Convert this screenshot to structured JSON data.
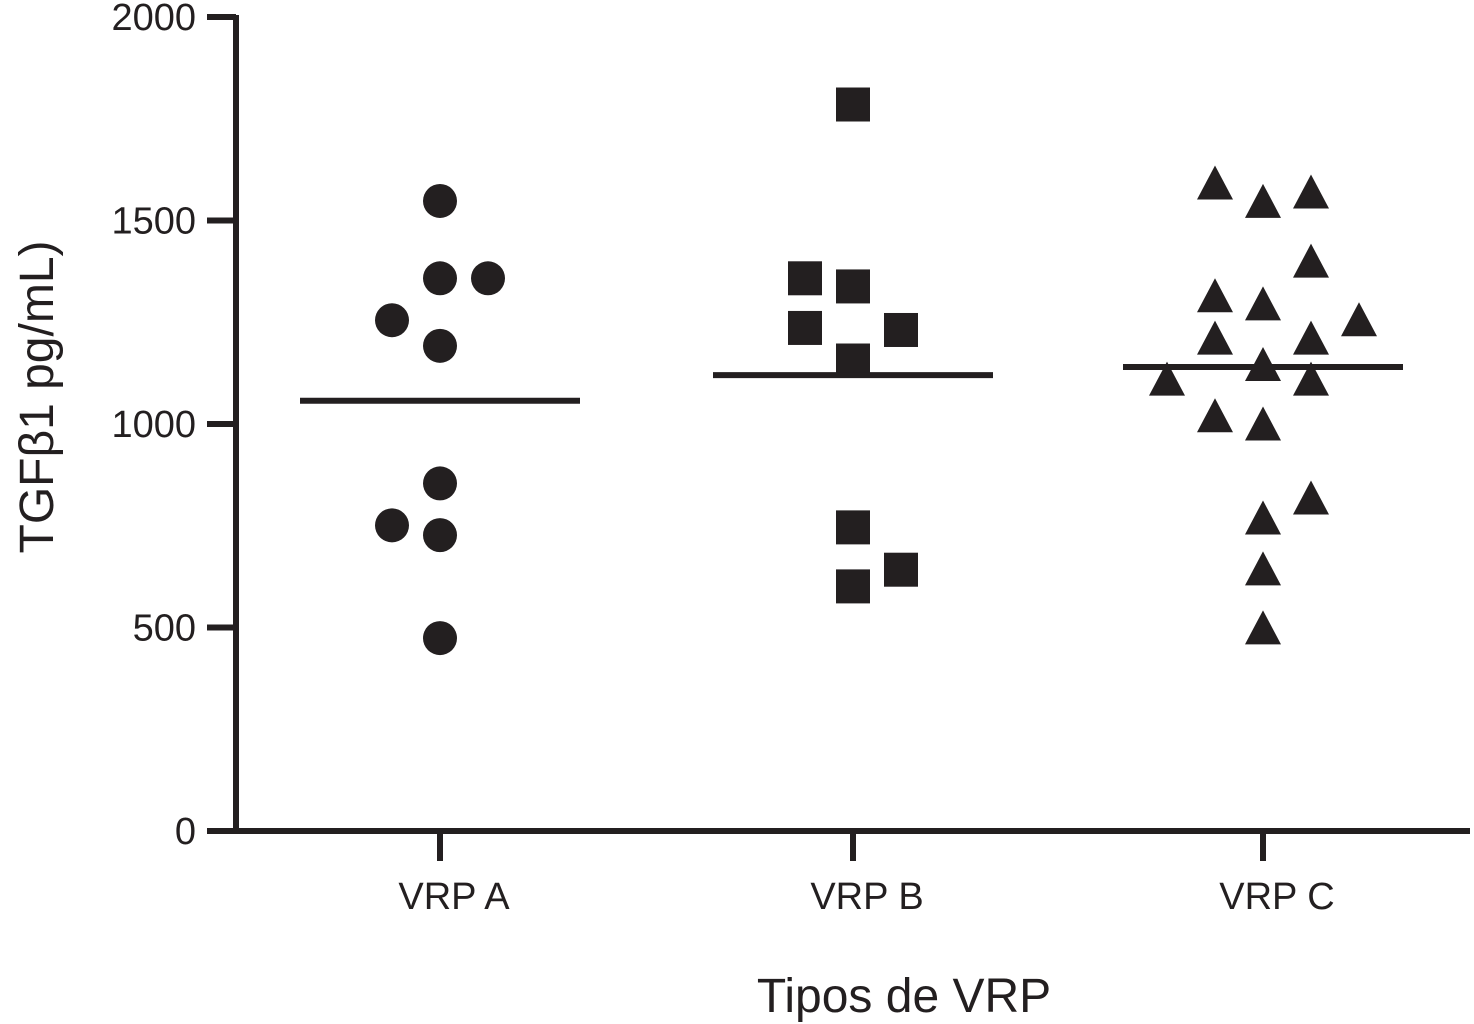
{
  "chart_data": {
    "type": "scatter",
    "title": "",
    "xlabel": "Tipos de VRP",
    "ylabel": "TGFβ1 pg/mL)",
    "ylim": [
      0,
      2000
    ],
    "yticks": [
      0,
      500,
      1000,
      1500,
      2000
    ],
    "categories": [
      "VRP A",
      "VRP B",
      "VRP C"
    ],
    "grid": false,
    "legend": "none",
    "marker_color": "#231f20",
    "series": [
      {
        "category": "VRP A",
        "marker": "circle",
        "mean": 1057,
        "points": [
          {
            "offset": 0,
            "value": 1548
          },
          {
            "offset": 0,
            "value": 1358
          },
          {
            "offset": 1,
            "value": 1358
          },
          {
            "offset": -1,
            "value": 1255
          },
          {
            "offset": 0,
            "value": 1192
          },
          {
            "offset": 0,
            "value": 854
          },
          {
            "offset": -1,
            "value": 751
          },
          {
            "offset": 0,
            "value": 727
          },
          {
            "offset": 0,
            "value": 474
          }
        ]
      },
      {
        "category": "VRP B",
        "marker": "square",
        "mean": 1120,
        "points": [
          {
            "offset": 0,
            "value": 1785
          },
          {
            "offset": -1,
            "value": 1358
          },
          {
            "offset": 0,
            "value": 1338
          },
          {
            "offset": -1,
            "value": 1236
          },
          {
            "offset": 1,
            "value": 1231
          },
          {
            "offset": 0,
            "value": 1156
          },
          {
            "offset": 0,
            "value": 746
          },
          {
            "offset": 1,
            "value": 642
          },
          {
            "offset": 0,
            "value": 601
          }
        ]
      },
      {
        "category": "VRP C",
        "marker": "triangle",
        "mean": 1140,
        "points": [
          {
            "offset": -1,
            "value": 1586
          },
          {
            "offset": 0,
            "value": 1541
          },
          {
            "offset": 1,
            "value": 1564
          },
          {
            "offset": 1,
            "value": 1394
          },
          {
            "offset": -1,
            "value": 1309
          },
          {
            "offset": 0,
            "value": 1289
          },
          {
            "offset": 2,
            "value": 1250
          },
          {
            "offset": -1,
            "value": 1205
          },
          {
            "offset": 1,
            "value": 1205
          },
          {
            "offset": -2,
            "value": 1104
          },
          {
            "offset": 0,
            "value": 1140
          },
          {
            "offset": 1,
            "value": 1104
          },
          {
            "offset": -1,
            "value": 1014
          },
          {
            "offset": 0,
            "value": 994
          },
          {
            "offset": 1,
            "value": 812
          },
          {
            "offset": 0,
            "value": 763
          },
          {
            "offset": 0,
            "value": 638
          },
          {
            "offset": 0,
            "value": 493
          }
        ]
      }
    ]
  }
}
